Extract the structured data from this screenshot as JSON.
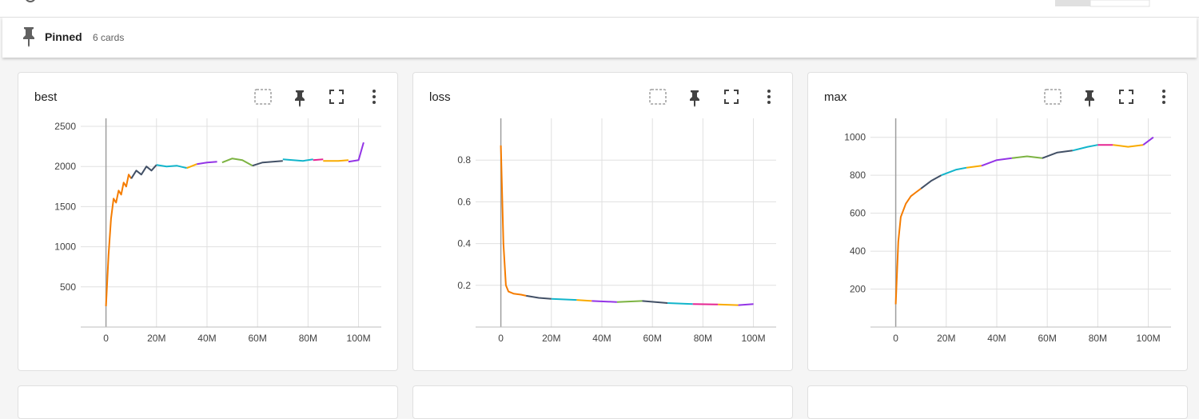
{
  "pinned": {
    "title": "Pinned",
    "count": "6 cards"
  },
  "chart_data": [
    {
      "type": "line",
      "title": "best",
      "xlim": [
        -10000000,
        109000000
      ],
      "ylim": [
        0,
        2600
      ],
      "xticks": [
        0,
        {
          "value": 20000000,
          "label": "20M"
        },
        {
          "value": 40000000,
          "label": "40M"
        },
        {
          "value": 60000000,
          "label": "60M"
        },
        {
          "value": 80000000,
          "label": "80M"
        },
        {
          "value": 100000000,
          "label": "100M"
        }
      ],
      "yticks": [
        500,
        1000,
        1500,
        2000,
        2500
      ],
      "grid": true,
      "series": [
        {
          "color": "#f57c00",
          "x": [
            0,
            1000000,
            2000000,
            3000000,
            4000000,
            5000000,
            6000000,
            7000000,
            8000000,
            9000000,
            10000000
          ],
          "values": [
            260,
            900,
            1350,
            1600,
            1550,
            1700,
            1650,
            1800,
            1750,
            1900,
            1850
          ]
        },
        {
          "color": "#425066",
          "x": [
            10000000,
            12000000,
            14000000,
            16000000,
            18000000,
            20000000
          ],
          "values": [
            1850,
            1950,
            1900,
            2000,
            1950,
            2020
          ]
        },
        {
          "color": "#12b5cb",
          "x": [
            20000000,
            24000000,
            28000000,
            32000000
          ],
          "values": [
            2020,
            2000,
            2010,
            1980
          ]
        },
        {
          "color": "#f9ab00",
          "x": [
            32000000,
            36000000
          ],
          "values": [
            1980,
            2030
          ]
        },
        {
          "color": "#9334e6",
          "x": [
            36000000,
            40000000,
            44000000
          ],
          "values": [
            2030,
            2050,
            2060
          ]
        },
        {
          "color": "#7cb342",
          "x": [
            46000000,
            50000000,
            54000000,
            58000000
          ],
          "values": [
            2050,
            2100,
            2080,
            2010
          ]
        },
        {
          "color": "#425066",
          "x": [
            58000000,
            62000000,
            66000000,
            70000000
          ],
          "values": [
            2010,
            2050,
            2060,
            2070
          ]
        },
        {
          "color": "#12b5cb",
          "x": [
            70000000,
            74000000,
            78000000,
            82000000
          ],
          "values": [
            2090,
            2080,
            2070,
            2090
          ]
        },
        {
          "color": "#e52592",
          "x": [
            82000000,
            86000000
          ],
          "values": [
            2080,
            2090
          ]
        },
        {
          "color": "#f9ab00",
          "x": [
            86000000,
            92000000,
            96000000
          ],
          "values": [
            2070,
            2070,
            2080
          ]
        },
        {
          "color": "#9334e6",
          "x": [
            96000000,
            100000000,
            102000000
          ],
          "values": [
            2060,
            2080,
            2300
          ]
        }
      ]
    },
    {
      "type": "line",
      "title": "loss",
      "xlim": [
        -10000000,
        109000000
      ],
      "ylim": [
        0,
        1
      ],
      "xticks": [
        0,
        {
          "value": 20000000,
          "label": "20M"
        },
        {
          "value": 40000000,
          "label": "40M"
        },
        {
          "value": 60000000,
          "label": "60M"
        },
        {
          "value": 80000000,
          "label": "80M"
        },
        {
          "value": 100000000,
          "label": "100M"
        }
      ],
      "yticks": [
        0.2,
        0.4,
        0.6,
        0.8
      ],
      "grid": true,
      "series": [
        {
          "color": "#f57c00",
          "x": [
            0,
            1000000,
            2000000,
            3000000,
            5000000,
            8000000,
            10000000
          ],
          "values": [
            0.87,
            0.4,
            0.2,
            0.17,
            0.16,
            0.155,
            0.15
          ]
        },
        {
          "color": "#425066",
          "x": [
            10000000,
            15000000,
            20000000
          ],
          "values": [
            0.15,
            0.14,
            0.135
          ]
        },
        {
          "color": "#12b5cb",
          "x": [
            20000000,
            30000000
          ],
          "values": [
            0.135,
            0.13
          ]
        },
        {
          "color": "#f9ab00",
          "x": [
            30000000,
            36000000
          ],
          "values": [
            0.13,
            0.125
          ]
        },
        {
          "color": "#9334e6",
          "x": [
            36000000,
            46000000
          ],
          "values": [
            0.125,
            0.12
          ]
        },
        {
          "color": "#7cb342",
          "x": [
            46000000,
            56000000
          ],
          "values": [
            0.12,
            0.125
          ]
        },
        {
          "color": "#425066",
          "x": [
            56000000,
            66000000
          ],
          "values": [
            0.125,
            0.115
          ]
        },
        {
          "color": "#12b5cb",
          "x": [
            66000000,
            76000000
          ],
          "values": [
            0.115,
            0.11
          ]
        },
        {
          "color": "#e52592",
          "x": [
            76000000,
            86000000
          ],
          "values": [
            0.11,
            0.108
          ]
        },
        {
          "color": "#f9ab00",
          "x": [
            86000000,
            94000000
          ],
          "values": [
            0.108,
            0.105
          ]
        },
        {
          "color": "#9334e6",
          "x": [
            94000000,
            100000000
          ],
          "values": [
            0.105,
            0.11
          ]
        }
      ]
    },
    {
      "type": "line",
      "title": "max",
      "xlim": [
        -10000000,
        109000000
      ],
      "ylim": [
        0,
        1100
      ],
      "xticks": [
        0,
        {
          "value": 20000000,
          "label": "20M"
        },
        {
          "value": 40000000,
          "label": "40M"
        },
        {
          "value": 60000000,
          "label": "60M"
        },
        {
          "value": 80000000,
          "label": "80M"
        },
        {
          "value": 100000000,
          "label": "100M"
        }
      ],
      "yticks": [
        200,
        400,
        600,
        800,
        1000
      ],
      "grid": true,
      "series": [
        {
          "color": "#f57c00",
          "x": [
            0,
            1000000,
            2000000,
            4000000,
            6000000,
            8000000,
            10000000
          ],
          "values": [
            120,
            450,
            580,
            650,
            690,
            710,
            730
          ]
        },
        {
          "color": "#425066",
          "x": [
            10000000,
            14000000,
            18000000
          ],
          "values": [
            730,
            770,
            800
          ]
        },
        {
          "color": "#12b5cb",
          "x": [
            18000000,
            24000000,
            28000000
          ],
          "values": [
            800,
            830,
            840
          ]
        },
        {
          "color": "#f9ab00",
          "x": [
            28000000,
            34000000
          ],
          "values": [
            840,
            850
          ]
        },
        {
          "color": "#9334e6",
          "x": [
            34000000,
            40000000,
            46000000
          ],
          "values": [
            850,
            880,
            890
          ]
        },
        {
          "color": "#7cb342",
          "x": [
            46000000,
            52000000,
            58000000
          ],
          "values": [
            890,
            900,
            890
          ]
        },
        {
          "color": "#425066",
          "x": [
            58000000,
            64000000,
            70000000
          ],
          "values": [
            890,
            920,
            930
          ]
        },
        {
          "color": "#12b5cb",
          "x": [
            70000000,
            76000000,
            80000000
          ],
          "values": [
            930,
            950,
            960
          ]
        },
        {
          "color": "#e52592",
          "x": [
            80000000,
            86000000
          ],
          "values": [
            960,
            960
          ]
        },
        {
          "color": "#f9ab00",
          "x": [
            86000000,
            92000000,
            98000000
          ],
          "values": [
            960,
            950,
            960
          ]
        },
        {
          "color": "#9334e6",
          "x": [
            98000000,
            102000000
          ],
          "values": [
            960,
            1000
          ]
        }
      ]
    }
  ]
}
